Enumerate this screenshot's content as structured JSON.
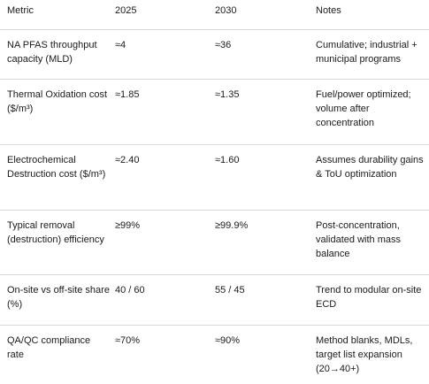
{
  "table": {
    "header": [
      "Metric",
      "2025",
      "2030",
      "Notes"
    ],
    "rows": [
      [
        "NA PFAS throughput capacity (MLD)",
        "≈4",
        "≈36",
        "Cumulative; industrial + municipal programs"
      ],
      [
        "Thermal Oxidation cost ($/m³)",
        "≈1.85",
        "≈1.35",
        "Fuel/power optimized; volume after concentration"
      ],
      [
        "Electrochemical Destruction cost ($/m³)",
        "≈2.40",
        "≈1.60",
        "Assumes durability gains & ToU optimization"
      ],
      [
        "Typical removal (destruction) efficiency",
        "≥99%",
        "≥99.9%",
        "Post-concentration, validated with mass balance"
      ],
      [
        "On-site vs off-site share (%)",
        "40 / 60",
        "55 / 45",
        "Trend to modular on-site ECD"
      ],
      [
        "QA/QC compliance rate",
        "≈70%",
        "≈90%",
        "Method blanks, MDLs, target list expansion (20→40+)"
      ]
    ]
  }
}
